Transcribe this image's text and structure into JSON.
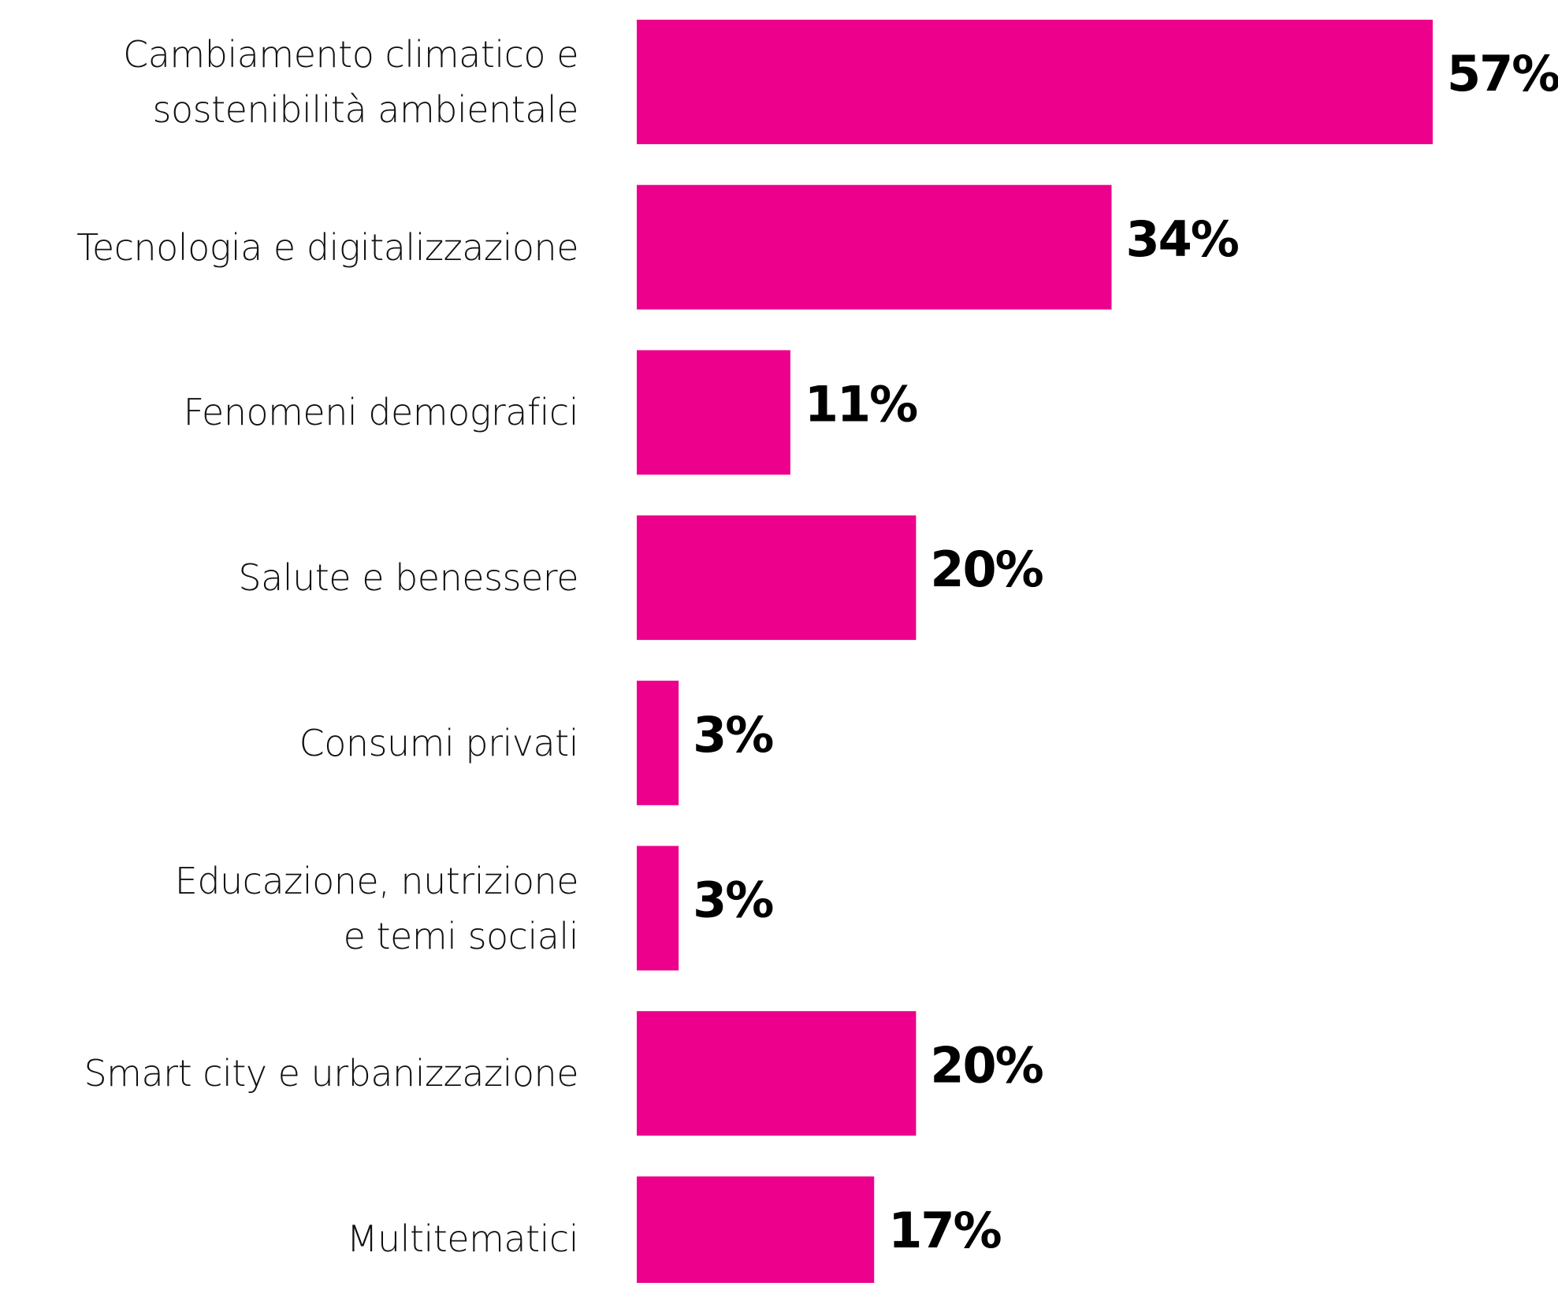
{
  "chart_data": {
    "type": "bar",
    "orientation": "horizontal",
    "categories": [
      "Cambiamento climatico e\nsostenibilità ambientale",
      "Tecnologia e digitalizzazione",
      "Fenomeni demografici",
      "Salute e benessere",
      "Consumi privati",
      "Educazione, nutrizione\ne temi sociali",
      "Smart city e urbanizzazione",
      "Multitematici"
    ],
    "values": [
      57,
      34,
      11,
      20,
      3,
      3,
      20,
      17
    ],
    "value_labels": [
      "57%",
      "34%",
      "11%",
      "20%",
      "3%",
      "3%",
      "20%",
      "17%"
    ],
    "color": "#ec008c"
  }
}
